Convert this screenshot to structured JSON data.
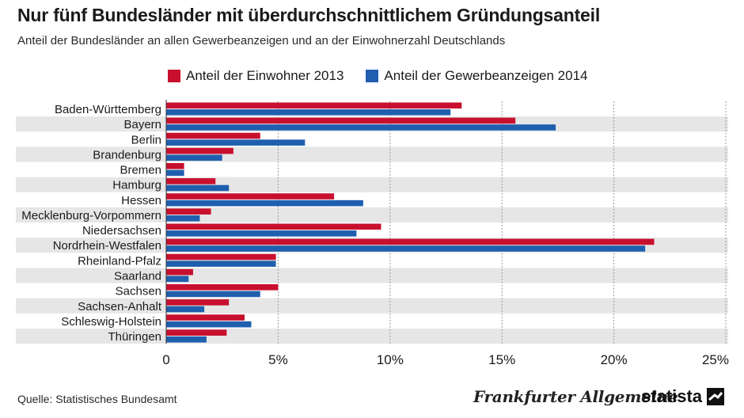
{
  "header": {
    "title": "Nur fünf Bundesländer mit überdurchschnittlichem Gründungsanteil",
    "subtitle": "Anteil der Bundesländer an allen Gewerbeanzeigen und an der Einwohnerzahl Deutschlands"
  },
  "footer": {
    "source": "Quelle: Statistisches Bundesamt",
    "faz_logo_text": "Frankfurter Allgemeine",
    "statista_logo_text": "statista"
  },
  "colors": {
    "einwohner": "#c8102e",
    "gewerbe": "#1f5fae",
    "band": "#e6e6e6",
    "grid": "#9a9a9a"
  },
  "chart_data": {
    "type": "bar",
    "orientation": "horizontal",
    "categories": [
      "Baden-Württemberg",
      "Bayern",
      "Berlin",
      "Brandenburg",
      "Bremen",
      "Hamburg",
      "Hessen",
      "Mecklenburg-Vorpommern",
      "Niedersachsen",
      "Nordrhein-Westfalen",
      "Rheinland-Pfalz",
      "Saarland",
      "Sachsen",
      "Sachsen-Anhalt",
      "Schleswig-Holstein",
      "Thüringen"
    ],
    "series": [
      {
        "name": "Anteil der Einwohner 2013",
        "values": [
          13.2,
          15.6,
          4.2,
          3.0,
          0.8,
          2.2,
          7.5,
          2.0,
          9.6,
          21.8,
          4.9,
          1.2,
          5.0,
          2.8,
          3.5,
          2.7
        ]
      },
      {
        "name": "Anteil der Gewerbeanzeigen 2014",
        "values": [
          12.7,
          17.4,
          6.2,
          2.5,
          0.8,
          2.8,
          8.8,
          1.5,
          8.5,
          21.4,
          4.9,
          1.0,
          4.2,
          1.7,
          3.8,
          1.8
        ]
      }
    ],
    "xlim": [
      0,
      25
    ],
    "xticks": [
      0,
      5,
      10,
      15,
      20,
      25
    ],
    "xtick_labels": [
      "0",
      "5%",
      "10%",
      "15%",
      "20%",
      "25%"
    ],
    "grid": "vertical dashed",
    "legend_position": "top"
  }
}
